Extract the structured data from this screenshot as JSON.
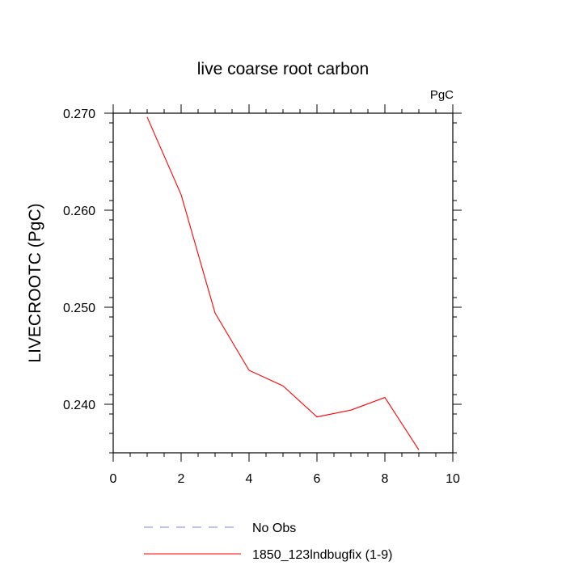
{
  "chart_data": {
    "type": "line",
    "title": "live coarse root carbon",
    "units_label": "PgC",
    "xlabel": "",
    "ylabel": "LIVECROOTC  (PgC)",
    "xlim": [
      0,
      10
    ],
    "ylim": [
      0.235,
      0.27
    ],
    "x_ticks": [
      0,
      2,
      4,
      6,
      8,
      10
    ],
    "x_tick_labels": [
      "0",
      "2",
      "4",
      "6",
      "8",
      "10"
    ],
    "y_ticks": [
      0.24,
      0.25,
      0.26,
      0.27
    ],
    "y_tick_labels": [
      "0.240",
      "0.250",
      "0.260",
      "0.270"
    ],
    "series": [
      {
        "name": "1850_123lndbugfix (1-9)",
        "color": "#ff0000",
        "dash": "solid",
        "x": [
          1,
          2,
          3,
          4,
          5,
          6,
          7,
          8,
          9
        ],
        "values": [
          0.2696,
          0.2616,
          0.2494,
          0.2435,
          0.2419,
          0.2387,
          0.2394,
          0.2407,
          0.2353
        ]
      }
    ],
    "legend": [
      {
        "label": "No Obs",
        "color": "#8080ff",
        "dash": "dashed"
      },
      {
        "label": "1850_123lndbugfix (1-9)",
        "color": "#ff0000",
        "dash": "solid"
      }
    ]
  }
}
